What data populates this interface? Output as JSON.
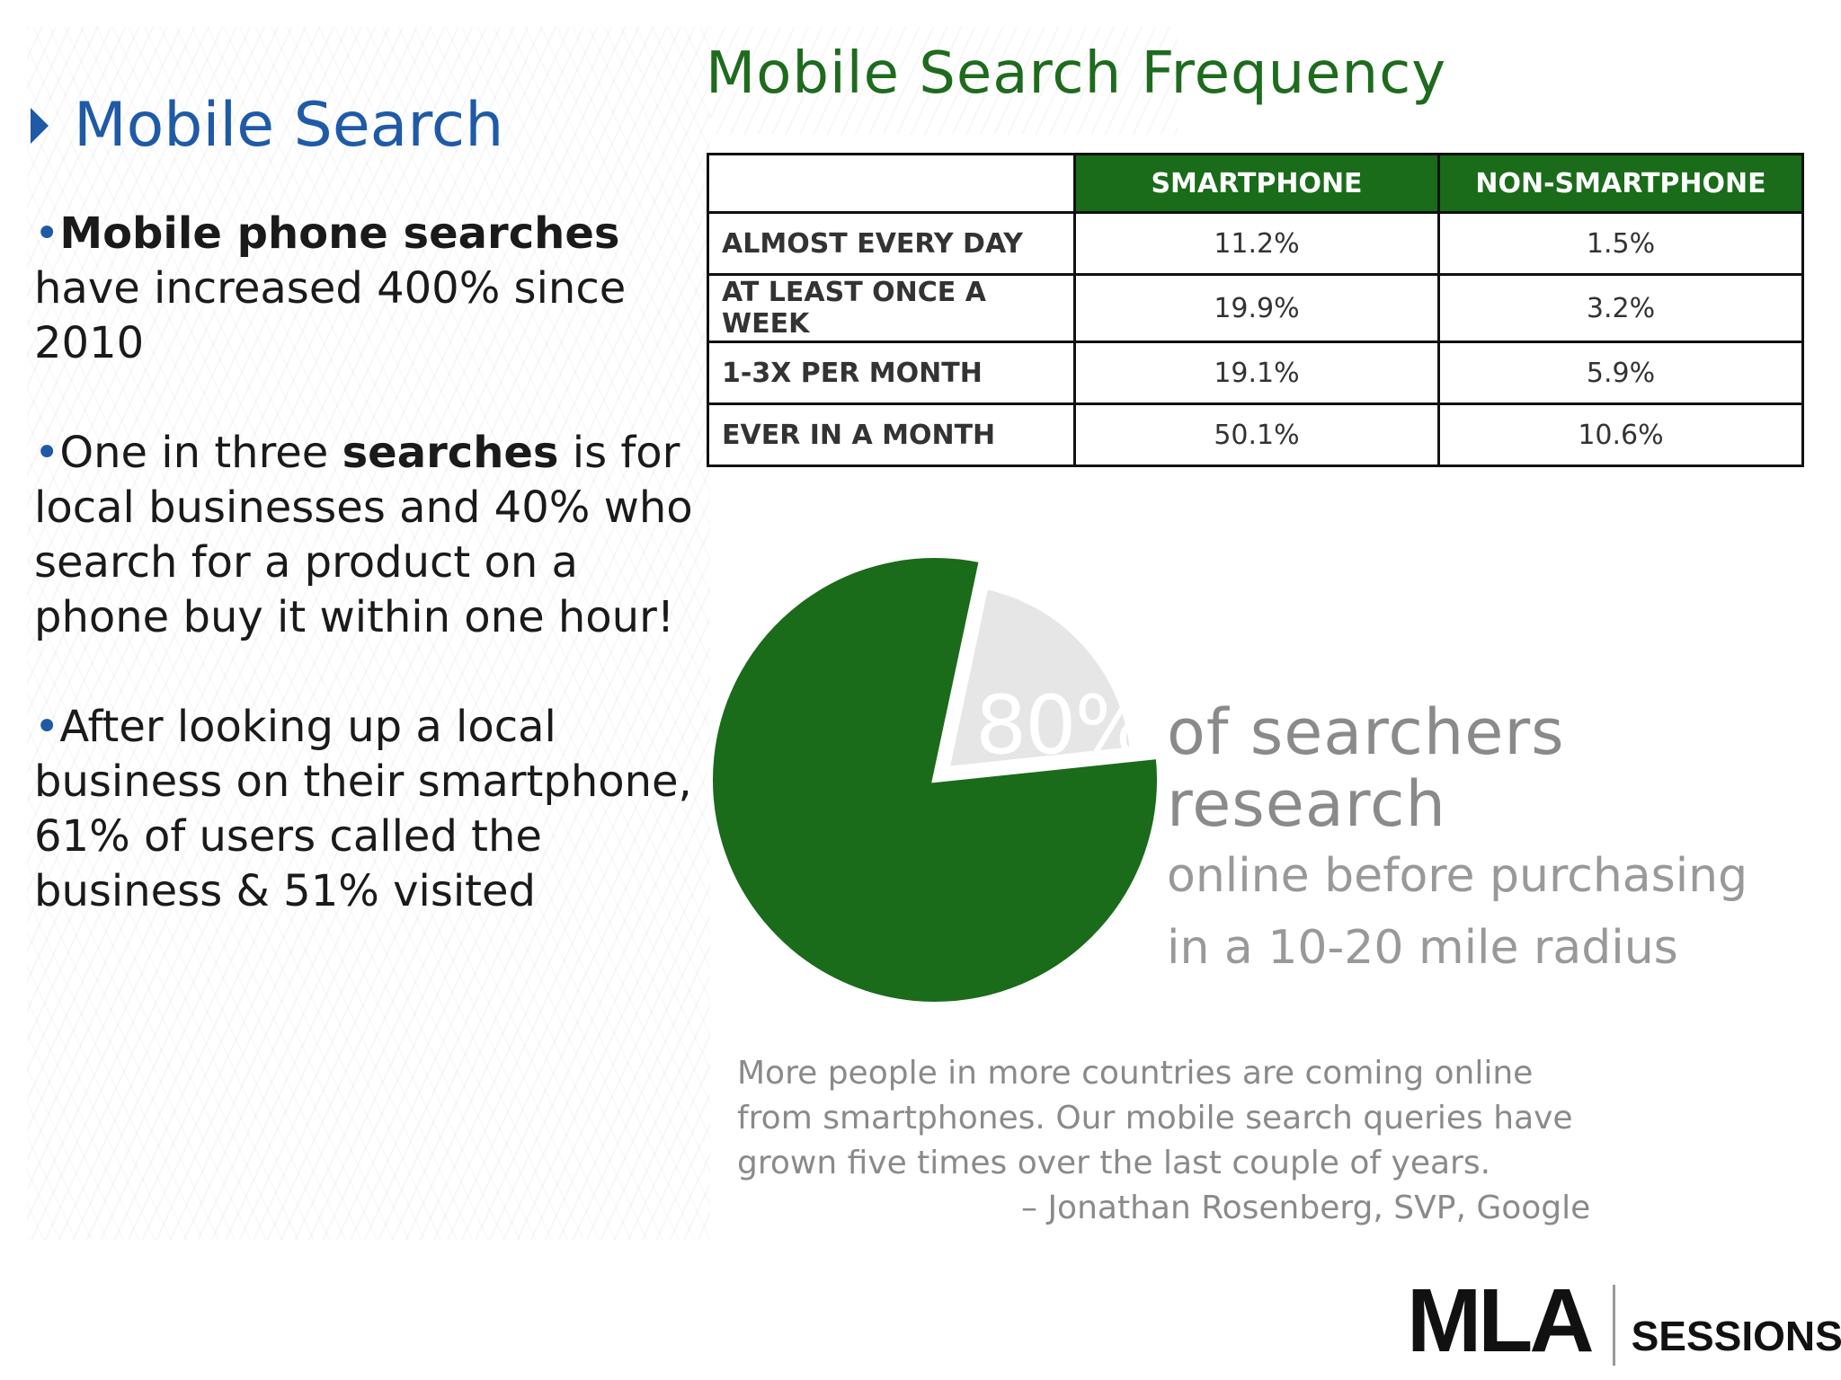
{
  "left": {
    "title": "Mobile Search",
    "bullets": [
      {
        "dot": "•",
        "bold": "Mobile phone searches",
        "rest": " have increased 400% since 2010"
      },
      {
        "dot": "•",
        "pre": "One in three ",
        "bold": "searches",
        "rest": " is for local businesses and 40% who search for a product on a phone buy it within one hour!"
      },
      {
        "dot": "•",
        "text": "After looking up a local business on their smartphone, 61% of users called the business & 51% visited"
      }
    ]
  },
  "chart_data": [
    {
      "type": "table",
      "title": "Mobile Search Frequency",
      "columns": [
        "SMARTPHONE",
        "NON-SMARTPHONE"
      ],
      "rows": [
        {
          "label": "ALMOST EVERY DAY",
          "values": [
            "11.2%",
            "1.5%"
          ]
        },
        {
          "label": "AT LEAST ONCE A WEEK",
          "values": [
            "19.9%",
            "3.2%"
          ]
        },
        {
          "label": "1-3X PER MONTH",
          "values": [
            "19.1%",
            "5.9%"
          ]
        },
        {
          "label": "EVER IN A MONTH",
          "values": [
            "50.1%",
            "10.6%"
          ]
        }
      ]
    },
    {
      "type": "pie",
      "slices": [
        {
          "value": 80,
          "label": "80%",
          "color": "#1a6b1a"
        },
        {
          "value": 20,
          "color": "#e6e6e6"
        }
      ],
      "caption": {
        "line1": "of searchers research",
        "line2": "online before purchasing",
        "line3": "in a 10-20 mile radius"
      }
    }
  ],
  "quote": {
    "line1": "More people in more countries are coming online",
    "line2": "from smartphones. Our mobile search queries have",
    "line3": "grown five times over the last couple of years.",
    "attribution": "– Jonathan Rosenberg, SVP, Google"
  },
  "logo": {
    "mla": "MLA",
    "sessions": "SESSIONS"
  },
  "colors": {
    "accent_blue": "#1f5aa6",
    "brand_green": "#1a6b1a",
    "caption_gray": "#8a8a8a"
  }
}
